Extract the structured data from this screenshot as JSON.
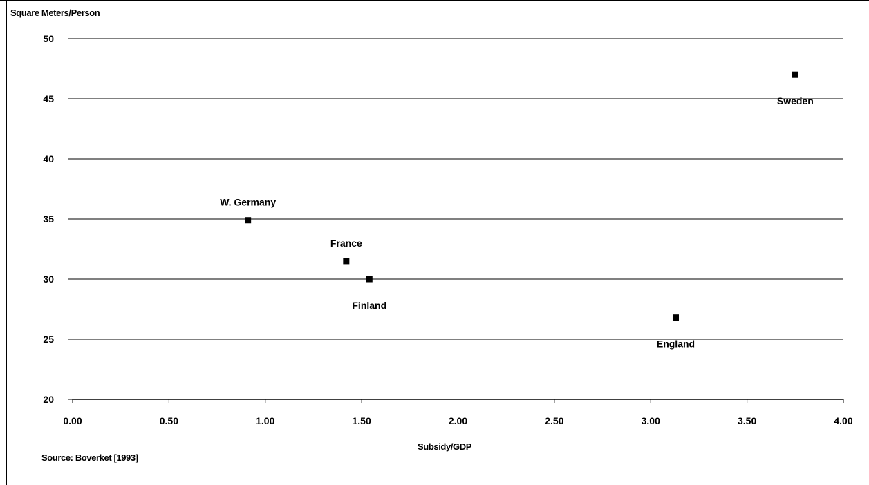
{
  "chart_data": {
    "type": "scatter",
    "title": "",
    "ylabel": "Square Meters/Person",
    "xlabel": "Subsidy/GDP",
    "source": "Source: Boverket [1993]",
    "xlim": [
      0,
      4
    ],
    "ylim": [
      20,
      50
    ],
    "x_ticks": [
      "0.00",
      "0.50",
      "1.00",
      "1.50",
      "2.00",
      "2.50",
      "3.00",
      "3.50",
      "4.00"
    ],
    "x_tick_values": [
      0,
      0.5,
      1,
      1.5,
      2,
      2.5,
      3,
      3.5,
      4
    ],
    "y_ticks": [
      "20",
      "25",
      "30",
      "35",
      "40",
      "45",
      "50"
    ],
    "y_tick_values": [
      20,
      25,
      30,
      35,
      40,
      45,
      50
    ],
    "grid": "horizontal",
    "marker": "square",
    "marker_color": "#000000",
    "points": [
      {
        "label": "W. Germany",
        "x": 0.91,
        "y": 34.9,
        "label_pos": "above"
      },
      {
        "label": "France",
        "x": 1.42,
        "y": 31.5,
        "label_pos": "above"
      },
      {
        "label": "Finland",
        "x": 1.54,
        "y": 30.0,
        "label_pos": "below"
      },
      {
        "label": "England",
        "x": 3.13,
        "y": 26.8,
        "label_pos": "below"
      },
      {
        "label": "Sweden",
        "x": 3.75,
        "y": 47.0,
        "label_pos": "below"
      }
    ]
  }
}
